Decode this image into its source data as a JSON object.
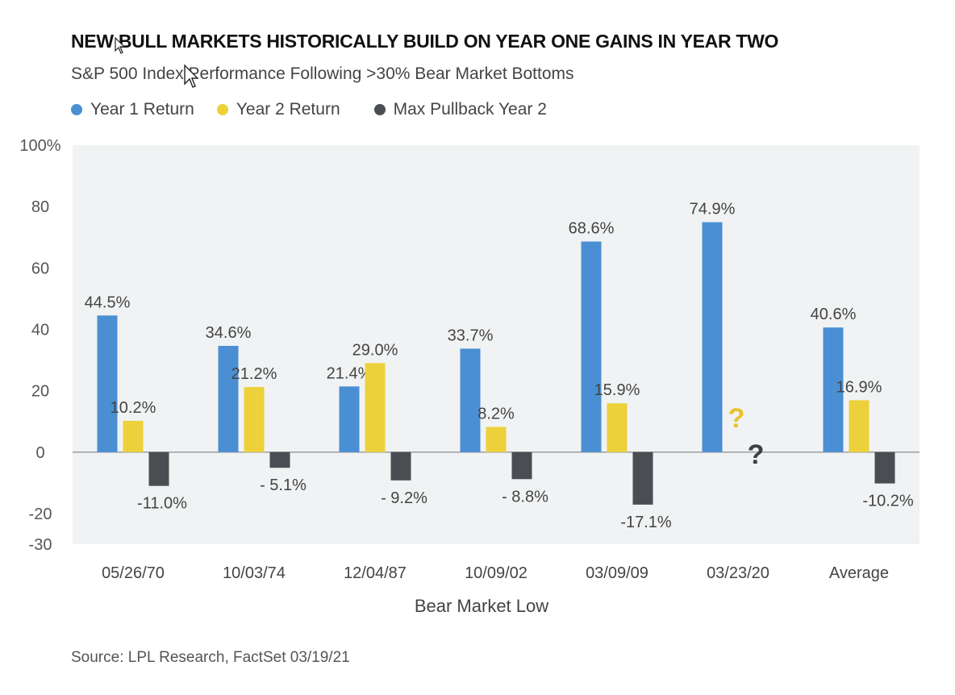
{
  "title": "NEW BULL MARKETS HISTORICALLY BUILD ON YEAR ONE GAINS IN YEAR TWO",
  "subtitle": "S&P 500 Index Performance Following >30% Bear Market Bottoms",
  "source": "Source: LPL Research, FactSet   03/19/21",
  "colors": {
    "year1": "#4a8fd4",
    "year2": "#ecd13b",
    "pullback": "#4a4d52",
    "plot_bg": "#f0f2f3",
    "question": "#e8c22a"
  },
  "chart_data": {
    "type": "bar",
    "categories": [
      "05/26/70",
      "10/03/74",
      "12/04/87",
      "10/09/02",
      "03/09/09",
      "03/23/20",
      "Average"
    ],
    "series": [
      {
        "name": "Year 1 Return",
        "values": [
          44.5,
          34.6,
          21.4,
          33.7,
          68.6,
          74.9,
          40.6
        ],
        "labels": [
          "44.5%",
          "34.6%",
          "21.4%",
          "33.7%",
          "68.6%",
          "74.9%",
          "40.6%"
        ]
      },
      {
        "name": "Year 2 Return",
        "values": [
          10.2,
          21.2,
          29.0,
          8.2,
          15.9,
          null,
          16.9
        ],
        "labels": [
          "10.2%",
          "21.2%",
          "29.0%",
          "8.2%",
          "15.9%",
          "?",
          "16.9%"
        ]
      },
      {
        "name": "Max Pullback Year 2",
        "values": [
          -11.0,
          -5.1,
          -9.2,
          -8.8,
          -17.1,
          null,
          -10.2
        ],
        "labels": [
          "-11.0%",
          "- 5.1%",
          "- 9.2%",
          "- 8.8%",
          "-17.1%",
          "?",
          "-10.2%"
        ]
      }
    ],
    "xlabel": "Bear Market Low",
    "ylabel": "",
    "ylim": [
      -30,
      100
    ],
    "yticks": [
      100,
      80,
      60,
      40,
      20,
      0,
      -20,
      -30
    ],
    "ytick_labels": [
      "100%",
      "80",
      "60",
      "40",
      "20",
      "0",
      "-20",
      "-30"
    ],
    "grid": false,
    "legend_position": "top-left"
  }
}
